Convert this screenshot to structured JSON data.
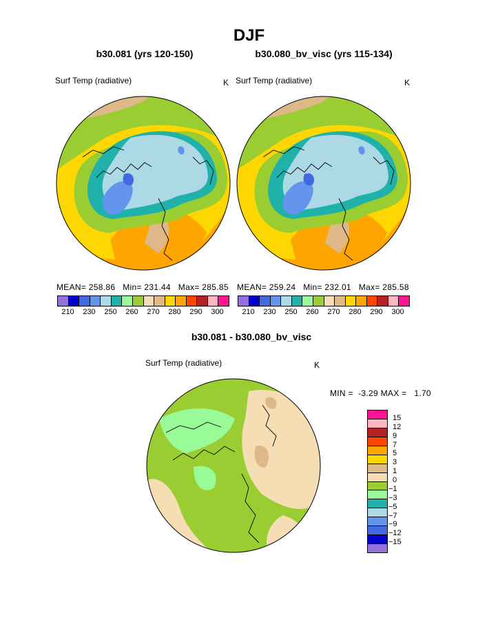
{
  "title": "DJF",
  "panels": [
    {
      "title": "b30.081 (yrs 120-150)",
      "variable": "Surf Temp (radiative)",
      "units": "K",
      "stats": "MEAN= 258.86   Min= 231.44   Max= 285.85"
    },
    {
      "title": "b30.080_bv_visc (yrs 115-134)",
      "variable": "Surf Temp (radiative)",
      "units": "K",
      "stats": "MEAN= 259.24   Min= 232.01   Max= 285.58"
    }
  ],
  "colorbar": {
    "colors": [
      "#9370db",
      "#0000cd",
      "#4169e1",
      "#6495ed",
      "#add8e6",
      "#20b2aa",
      "#98fb98",
      "#9acd32",
      "#f5deb3",
      "#deb887",
      "#ffd700",
      "#ffa500",
      "#ff4500",
      "#b22222",
      "#ffb6c1",
      "#ff1493"
    ],
    "tick_labels": [
      "210",
      "230",
      "250",
      "260",
      "270",
      "280",
      "290",
      "300"
    ]
  },
  "difference": {
    "title": "b30.081 - b30.080_bv_visc",
    "variable": "Surf Temp (radiative)",
    "units": "K",
    "stats": "MIN =  -3.29 MAX =   1.70",
    "colors": [
      "#ff1493",
      "#ffb6c1",
      "#b22222",
      "#ff4500",
      "#ffa500",
      "#ffd700",
      "#deb887",
      "#f5deb3",
      "#9acd32",
      "#98fb98",
      "#20b2aa",
      "#add8e6",
      "#6495ed",
      "#4169e1",
      "#0000cd",
      "#9370db"
    ],
    "tick_labels": [
      "15",
      "12",
      "9",
      "7",
      "5",
      "3",
      "1",
      "0",
      "−1",
      "−3",
      "−5",
      "−7",
      "−9",
      "−12",
      "−15"
    ]
  }
}
